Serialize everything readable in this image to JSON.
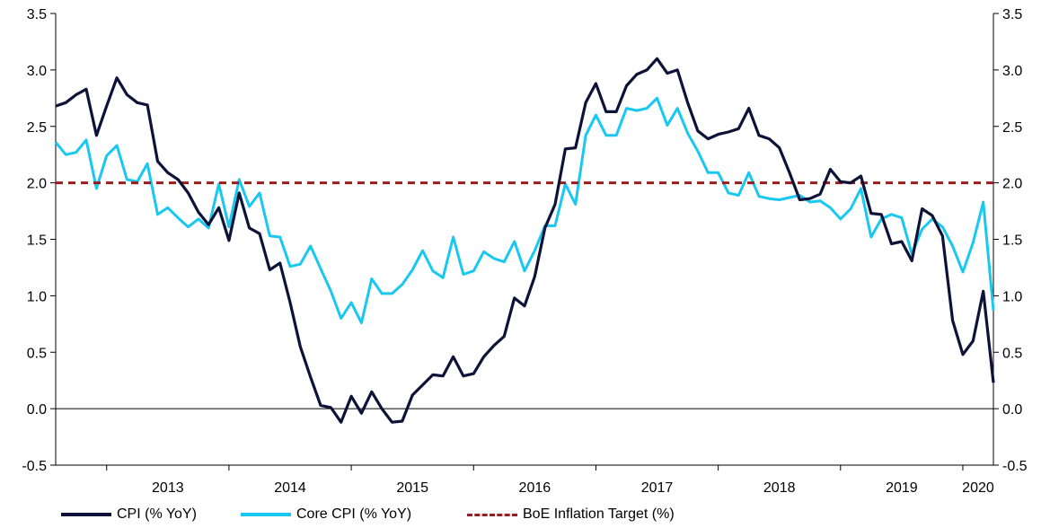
{
  "colors": {
    "cpi": "#0d1238",
    "core_cpi": "#18c8f0",
    "target": "#9b1c1c",
    "zero_line": "#000000",
    "axis": "#000000"
  },
  "legend": {
    "cpi_label": "CPI (% YoY)",
    "core_label": "Core CPI (% YoY)",
    "target_label": "BoE Inflation Target (%)"
  },
  "chart_data": {
    "type": "line",
    "title": "",
    "xlabel": "",
    "ylabel": "",
    "ylim": [
      -0.5,
      3.5
    ],
    "yticks": [
      "-0.5",
      "0.0",
      "0.5",
      "1.0",
      "1.5",
      "2.0",
      "2.5",
      "3.0",
      "3.5"
    ],
    "xticks": [
      "2013",
      "2014",
      "2015",
      "2016",
      "2017",
      "2018",
      "2019",
      "2020"
    ],
    "legend_position": "bottom",
    "grid": false,
    "x_start": "2012-08",
    "x_end": "2020-08",
    "x_frequency": "monthly",
    "series": [
      {
        "name": "CPI (% YoY)",
        "style": "solid",
        "values": [
          2.68,
          2.71,
          2.78,
          2.83,
          2.42,
          2.68,
          2.93,
          2.78,
          2.71,
          2.69,
          2.19,
          2.09,
          2.03,
          1.91,
          1.74,
          1.63,
          1.78,
          1.49,
          1.91,
          1.6,
          1.55,
          1.23,
          1.29,
          0.94,
          0.55,
          0.28,
          0.03,
          0.01,
          -0.12,
          0.11,
          -0.04,
          0.15,
          0.0,
          -0.12,
          -0.11,
          0.12,
          0.21,
          0.3,
          0.29,
          0.46,
          0.29,
          0.31,
          0.46,
          0.56,
          0.64,
          0.98,
          0.91,
          1.17,
          1.6,
          1.81,
          2.3,
          2.31,
          2.71,
          2.88,
          2.63,
          2.63,
          2.86,
          2.96,
          3.0,
          3.1,
          2.97,
          3.0,
          2.71,
          2.46,
          2.39,
          2.43,
          2.45,
          2.48,
          2.66,
          2.42,
          2.39,
          2.31,
          2.09,
          1.85,
          1.86,
          1.9,
          2.12,
          2.01,
          2.0,
          2.06,
          1.73,
          1.72,
          1.46,
          1.48,
          1.31,
          1.77,
          1.71,
          1.53,
          0.78,
          0.48,
          0.6,
          1.04,
          0.23
        ],
        "color_key": "cpi"
      },
      {
        "name": "Core CPI (% YoY)",
        "style": "solid",
        "values": [
          2.36,
          2.25,
          2.27,
          2.38,
          1.95,
          2.24,
          2.33,
          2.03,
          2.01,
          2.17,
          1.72,
          1.78,
          1.69,
          1.61,
          1.68,
          1.6,
          1.99,
          1.61,
          2.03,
          1.79,
          1.91,
          1.53,
          1.52,
          1.26,
          1.28,
          1.44,
          1.24,
          1.04,
          0.8,
          0.94,
          0.76,
          1.15,
          1.02,
          1.02,
          1.1,
          1.23,
          1.4,
          1.22,
          1.16,
          1.52,
          1.19,
          1.22,
          1.39,
          1.33,
          1.3,
          1.48,
          1.22,
          1.4,
          1.62,
          1.62,
          1.99,
          1.81,
          2.42,
          2.6,
          2.42,
          2.42,
          2.66,
          2.64,
          2.66,
          2.75,
          2.51,
          2.66,
          2.44,
          2.28,
          2.09,
          2.09,
          1.91,
          1.89,
          2.09,
          1.88,
          1.86,
          1.85,
          1.87,
          1.89,
          1.83,
          1.84,
          1.78,
          1.68,
          1.77,
          1.95,
          1.52,
          1.68,
          1.72,
          1.69,
          1.37,
          1.59,
          1.68,
          1.61,
          1.44,
          1.21,
          1.47,
          1.83,
          0.87
        ],
        "color_key": "core_cpi"
      },
      {
        "name": "BoE Inflation Target (%)",
        "style": "dashed",
        "values": [
          2.0
        ],
        "constant": true,
        "color_key": "target"
      }
    ]
  }
}
